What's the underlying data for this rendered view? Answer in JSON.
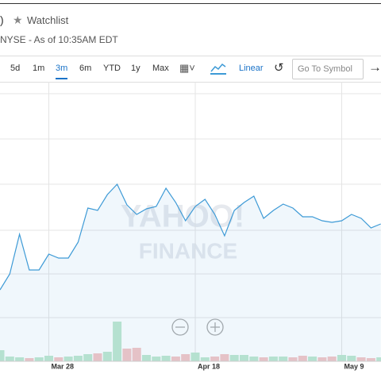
{
  "header": {
    "name_fragment": ")",
    "watchlist": "Watchlist",
    "exchange_note": "NYSE - As of 10:35AM EDT"
  },
  "toolbar": {
    "ranges": [
      "5d",
      "1m",
      "3m",
      "6m",
      "YTD",
      "1y",
      "Max"
    ],
    "scale": "Linear",
    "symbol_placeholder": "Go To Symbol"
  },
  "watermark": {
    "line1": "YAHOO!",
    "line2": "FINANCE"
  },
  "chart_data": {
    "type": "line",
    "color": "#3d9ad6",
    "categories": [
      null,
      null,
      null,
      null,
      null,
      "Mar 28",
      null,
      null,
      null,
      null,
      null,
      null,
      null,
      null,
      null,
      null,
      null,
      null,
      null,
      null,
      "Apr 18",
      null,
      null,
      null,
      null,
      null,
      null,
      null,
      null,
      null,
      null,
      null,
      null,
      null,
      null,
      "May 9",
      null,
      null,
      null,
      null
    ],
    "values": [
      90,
      110,
      160,
      115,
      115,
      135,
      130,
      130,
      150,
      193,
      190,
      210,
      223,
      197,
      185,
      192,
      195,
      218,
      200,
      177,
      195,
      204,
      185,
      158,
      190,
      200,
      208,
      180,
      190,
      198,
      193,
      182,
      182,
      177,
      175,
      177,
      185,
      180,
      168,
      173
    ],
    "volume": [
      14,
      6,
      5,
      4,
      5,
      7,
      5,
      6,
      7,
      9,
      10,
      12,
      50,
      16,
      17,
      8,
      6,
      7,
      6,
      9,
      11,
      5,
      6,
      9,
      8,
      8,
      6,
      5,
      6,
      6,
      5,
      7,
      6,
      5,
      6,
      8,
      7,
      5,
      4,
      5
    ],
    "ylim": [
      0,
      352
    ]
  }
}
